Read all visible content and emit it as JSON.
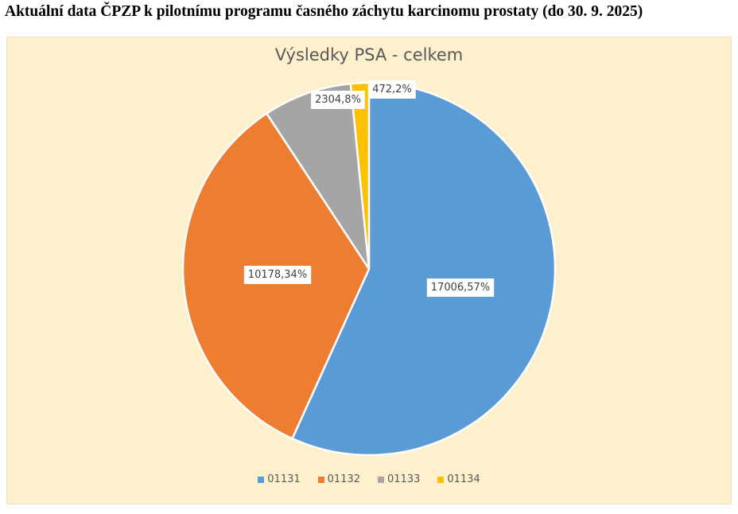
{
  "heading": "Aktuální data ČPZP k pilotnímu programu časného záchytu karcinomu prostaty (do 30. 9. 2025)",
  "chart_data": {
    "type": "pie",
    "title": "Výsledky PSA - celkem",
    "categories": [
      "01131",
      "01132",
      "01133",
      "01134"
    ],
    "values": [
      17006,
      10178,
      2304,
      472
    ],
    "percents": [
      57,
      34,
      8,
      2
    ],
    "data_labels": [
      "17006,57%",
      "10178,34%",
      "2304,8%",
      "472,2%"
    ],
    "colors": [
      "#5b9bd5",
      "#ed7d31",
      "#a5a5a5",
      "#ffc000"
    ],
    "legend_position": "bottom",
    "start_angle": "top, clockwise"
  }
}
